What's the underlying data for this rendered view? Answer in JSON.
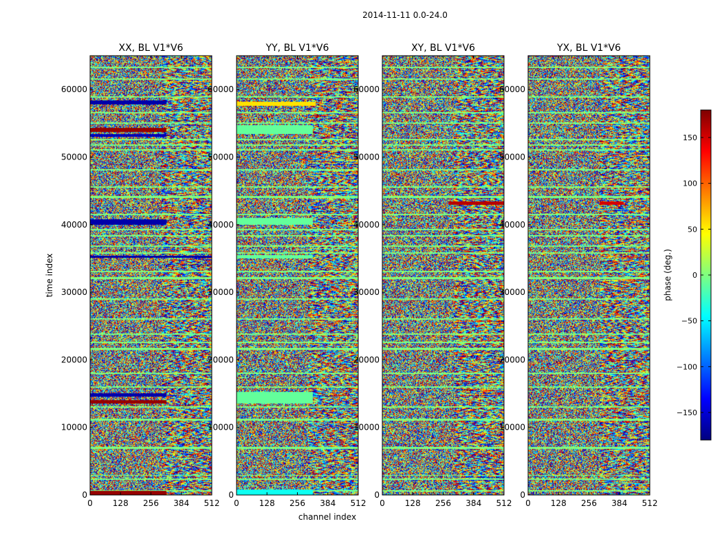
{
  "figure": {
    "suptitle": "2014-11-11 0.0-24.0"
  },
  "chart_data": {
    "type": "heatmap",
    "title": "2014-11-11 0.0-24.0",
    "xlabel": "channel index",
    "ylabel": "time index",
    "xlim": [
      0,
      512
    ],
    "ylim": [
      0,
      65000
    ],
    "x_ticks": [
      0,
      128,
      256,
      384,
      512
    ],
    "y_ticks": [
      0,
      10000,
      20000,
      30000,
      40000,
      50000,
      60000
    ],
    "colorbar": {
      "label": "phase (deg.)",
      "range": [
        -180,
        180
      ],
      "ticks": [
        -150,
        -100,
        -50,
        0,
        50,
        100,
        150
      ],
      "cmap": "jet",
      "cmap_stops": [
        "#00007f",
        "#0000ff",
        "#007fff",
        "#00ffff",
        "#7fff7f",
        "#ffff00",
        "#ff7f00",
        "#ff0000",
        "#7f0000"
      ]
    },
    "panels": [
      {
        "title": "XX, BL V1*V6",
        "seed": 11,
        "show_ylabel": true,
        "show_xlabel": false,
        "constant_bands": [
          {
            "t0": 57800,
            "t1": 58400,
            "x0": 0,
            "x1": 320,
            "phase": -165
          },
          {
            "t0": 53800,
            "t1": 54400,
            "x0": 0,
            "x1": 320,
            "phase": 172
          },
          {
            "t0": 53000,
            "t1": 53500,
            "x0": 0,
            "x1": 320,
            "phase": -160
          },
          {
            "t0": 40000,
            "t1": 40800,
            "x0": 0,
            "x1": 320,
            "phase": -165
          },
          {
            "t0": 35100,
            "t1": 35500,
            "x0": 0,
            "x1": 512,
            "phase": -165
          },
          {
            "t0": 14600,
            "t1": 15100,
            "x0": 0,
            "x1": 320,
            "phase": -165
          },
          {
            "t0": 13600,
            "t1": 14100,
            "x0": 0,
            "x1": 320,
            "phase": 172
          },
          {
            "t0": 0,
            "t1": 700,
            "x0": 0,
            "x1": 320,
            "phase": 172
          }
        ]
      },
      {
        "title": "YY, BL V1*V6",
        "seed": 23,
        "show_ylabel": false,
        "show_xlabel": true,
        "constant_bands": [
          {
            "t0": 57600,
            "t1": 58200,
            "x0": 0,
            "x1": 330,
            "phase": 55
          },
          {
            "t0": 53500,
            "t1": 54800,
            "x0": 0,
            "x1": 320,
            "phase": -10
          },
          {
            "t0": 40000,
            "t1": 41000,
            "x0": 0,
            "x1": 320,
            "phase": -10
          },
          {
            "t0": 35000,
            "t1": 35600,
            "x0": 0,
            "x1": 320,
            "phase": -10
          },
          {
            "t0": 13600,
            "t1": 15300,
            "x0": 0,
            "x1": 320,
            "phase": -10
          },
          {
            "t0": 0,
            "t1": 900,
            "x0": 0,
            "x1": 320,
            "phase": -40
          }
        ]
      },
      {
        "title": "XY, BL V1*V6",
        "seed": 37,
        "show_ylabel": false,
        "show_xlabel": false,
        "constant_bands": [
          {
            "t0": 43000,
            "t1": 43500,
            "x0": 280,
            "x1": 512,
            "phase": 160
          }
        ]
      },
      {
        "title": "YX, BL V1*V6",
        "seed": 53,
        "show_ylabel": false,
        "show_xlabel": false,
        "constant_bands": [
          {
            "t0": 43000,
            "t1": 43500,
            "x0": 300,
            "x1": 400,
            "phase": 150
          }
        ]
      }
    ],
    "flagged_rows_phase": 0,
    "flagged_rows": [
      [
        600,
        750
      ],
      [
        2300,
        2500
      ],
      [
        2900,
        3050
      ],
      [
        6900,
        7200
      ],
      [
        11000,
        11300
      ],
      [
        13000,
        13200
      ],
      [
        15900,
        16100
      ],
      [
        18000,
        18200
      ],
      [
        21500,
        21800
      ],
      [
        22500,
        22700
      ],
      [
        23800,
        24000
      ],
      [
        26000,
        26200
      ],
      [
        28900,
        29100
      ],
      [
        32000,
        32300
      ],
      [
        33000,
        33200
      ],
      [
        35800,
        36000
      ],
      [
        36800,
        37000
      ],
      [
        38300,
        38500
      ],
      [
        39200,
        39400
      ],
      [
        41500,
        41700
      ],
      [
        44000,
        44300
      ],
      [
        45500,
        45700
      ],
      [
        48100,
        48300
      ],
      [
        51000,
        51200
      ],
      [
        51700,
        51900
      ],
      [
        52500,
        52700
      ],
      [
        55000,
        55200
      ],
      [
        56500,
        56700
      ],
      [
        58800,
        59000
      ],
      [
        61500,
        61700
      ],
      [
        63200,
        63400
      ]
    ]
  }
}
